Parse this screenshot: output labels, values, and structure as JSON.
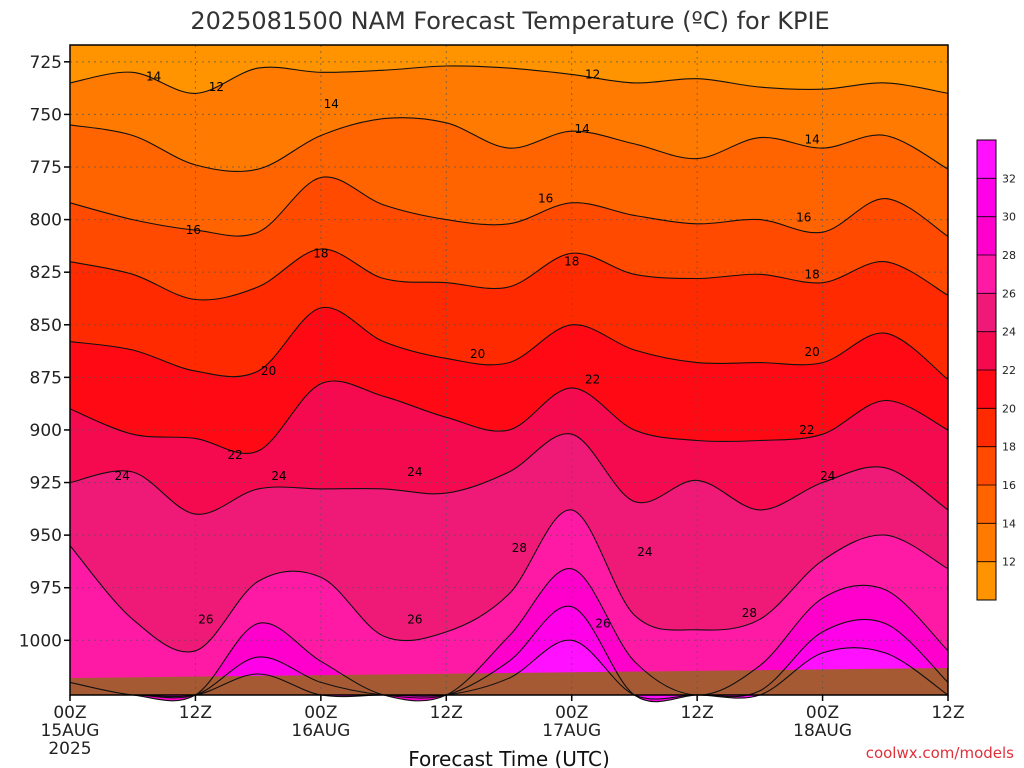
{
  "chart_data": {
    "type": "heatmap",
    "title": "2025081500 NAM Forecast Temperature (ºC) for KPIE",
    "xlabel": "Forecast Time (UTC)",
    "ylabel": "",
    "credit": "coolwx.com/models",
    "y_axis": {
      "scale": "linear",
      "inverted": true,
      "range": [
        1026,
        717
      ],
      "ticks": [
        725,
        750,
        775,
        800,
        825,
        850,
        875,
        900,
        925,
        950,
        975,
        1000
      ],
      "tick_labels": [
        "725",
        "750",
        "775",
        "800",
        "825",
        "850",
        "875",
        "900",
        "925",
        "950",
        "975",
        "1000"
      ]
    },
    "x_axis": {
      "range_hours": [
        0,
        84
      ],
      "ticks": [
        {
          "hour": 0,
          "label": "00Z",
          "label2": "15AUG",
          "label3": "2025"
        },
        {
          "hour": 12,
          "label": "12Z",
          "label2": "",
          "label3": ""
        },
        {
          "hour": 24,
          "label": "00Z",
          "label2": "16AUG",
          "label3": ""
        },
        {
          "hour": 36,
          "label": "12Z",
          "label2": "",
          "label3": ""
        },
        {
          "hour": 48,
          "label": "00Z",
          "label2": "17AUG",
          "label3": ""
        },
        {
          "hour": 60,
          "label": "12Z",
          "label2": "",
          "label3": ""
        },
        {
          "hour": 72,
          "label": "00Z",
          "label2": "18AUG",
          "label3": ""
        },
        {
          "hour": 84,
          "label": "12Z",
          "label2": "",
          "label3": ""
        }
      ]
    },
    "grid": true,
    "hours": [
      0,
      6,
      12,
      18,
      24,
      30,
      36,
      42,
      48,
      54,
      60,
      66,
      72,
      78,
      84
    ],
    "contours": [
      {
        "level": 12,
        "label": "12",
        "values": [
          735,
          730,
          740,
          728,
          730,
          729,
          727,
          728,
          731,
          735,
          733,
          737,
          738,
          735,
          740
        ]
      },
      {
        "level": 14,
        "label": "14",
        "values": [
          755,
          760,
          774,
          776,
          760,
          752,
          754,
          766,
          758,
          764,
          771,
          761,
          766,
          760,
          776
        ]
      },
      {
        "level": 16,
        "label": "16",
        "values": [
          792,
          800,
          805,
          806,
          780,
          793,
          800,
          802,
          792,
          798,
          802,
          800,
          806,
          790,
          808
        ]
      },
      {
        "level": 18,
        "label": "18",
        "values": [
          820,
          826,
          838,
          832,
          814,
          828,
          830,
          832,
          816,
          826,
          828,
          826,
          830,
          820,
          836
        ]
      },
      {
        "level": 20,
        "label": "20",
        "values": [
          858,
          862,
          872,
          872,
          842,
          858,
          866,
          868,
          850,
          862,
          868,
          868,
          868,
          854,
          876
        ]
      },
      {
        "level": 22,
        "label": "22",
        "values": [
          890,
          902,
          904,
          910,
          878,
          884,
          894,
          900,
          880,
          900,
          905,
          905,
          902,
          886,
          900
        ]
      },
      {
        "level": 24,
        "label": "24",
        "values": [
          925,
          920,
          940,
          928,
          928,
          928,
          930,
          920,
          902,
          934,
          924,
          938,
          925,
          918,
          938
        ]
      },
      {
        "level": 26,
        "label": "26",
        "values": [
          955,
          990,
          1005,
          972,
          970,
          998,
          996,
          978,
          938,
          988,
          995,
          990,
          962,
          950,
          966
        ]
      },
      {
        "level": 28,
        "label": "28",
        "values": [
          1020,
          1026,
          1026,
          992,
          1010,
          1026,
          1026,
          998,
          966,
          1010,
          1026,
          1012,
          980,
          976,
          1005
        ]
      },
      {
        "level": 30,
        "label": "30",
        "values": [
          1026,
          1026,
          1026,
          1008,
          1020,
          1026,
          1026,
          1010,
          984,
          1026,
          1026,
          1024,
          996,
          992,
          1020
        ]
      },
      {
        "level": 32,
        "label": "32",
        "values": [
          1026,
          1026,
          1026,
          1016,
          1026,
          1026,
          1026,
          1018,
          1000,
          1026,
          1026,
          1026,
          1006,
          1006,
          1026
        ]
      }
    ],
    "contour_labels": [
      {
        "text": "12",
        "hour": 14.0,
        "level_pres": 737
      },
      {
        "text": "12",
        "hour": 50.0,
        "level_pres": 731
      },
      {
        "text": "14",
        "hour": 8.0,
        "level_pres": 732
      },
      {
        "text": "14",
        "hour": 25.0,
        "level_pres": 745
      },
      {
        "text": "14",
        "hour": 49.0,
        "level_pres": 757
      },
      {
        "text": "14",
        "hour": 71.0,
        "level_pres": 762
      },
      {
        "text": "16",
        "hour": 11.8,
        "level_pres": 805
      },
      {
        "text": "16",
        "hour": 45.5,
        "level_pres": 790
      },
      {
        "text": "16",
        "hour": 70.2,
        "level_pres": 799
      },
      {
        "text": "18",
        "hour": 24.0,
        "level_pres": 816
      },
      {
        "text": "18",
        "hour": 48.0,
        "level_pres": 820
      },
      {
        "text": "18",
        "hour": 71.0,
        "level_pres": 826
      },
      {
        "text": "20",
        "hour": 19.0,
        "level_pres": 872
      },
      {
        "text": "20",
        "hour": 39.0,
        "level_pres": 864
      },
      {
        "text": "20",
        "hour": 71.0,
        "level_pres": 863
      },
      {
        "text": "22",
        "hour": 15.8,
        "level_pres": 912
      },
      {
        "text": "22",
        "hour": 50.0,
        "level_pres": 876
      },
      {
        "text": "22",
        "hour": 70.5,
        "level_pres": 900
      },
      {
        "text": "24",
        "hour": 5.0,
        "level_pres": 922
      },
      {
        "text": "24",
        "hour": 20.0,
        "level_pres": 922
      },
      {
        "text": "24",
        "hour": 33.0,
        "level_pres": 920
      },
      {
        "text": "24",
        "hour": 55.0,
        "level_pres": 958
      },
      {
        "text": "24",
        "hour": 72.5,
        "level_pres": 922
      },
      {
        "text": "26",
        "hour": 13.0,
        "level_pres": 990
      },
      {
        "text": "26",
        "hour": 33.0,
        "level_pres": 990
      },
      {
        "text": "26",
        "hour": 51.0,
        "level_pres": 992
      },
      {
        "text": "28",
        "hour": 43.0,
        "level_pres": 956
      },
      {
        "text": "28",
        "hour": 65.0,
        "level_pres": 987
      }
    ],
    "colorbar": {
      "levels": [
        "12",
        "14",
        "16",
        "18",
        "20",
        "22",
        "24",
        "26",
        "28",
        "30",
        "32"
      ],
      "colors": [
        "#ff9300",
        "#ff7a00",
        "#ff6400",
        "#ff4a00",
        "#ff2a00",
        "#ff0a14",
        "#f50a50",
        "#ef1a78",
        "#ff1aa6",
        "#ff00cc",
        "#ff00e8",
        "#ff10ff"
      ]
    },
    "terrain_color": "#a65a34"
  }
}
